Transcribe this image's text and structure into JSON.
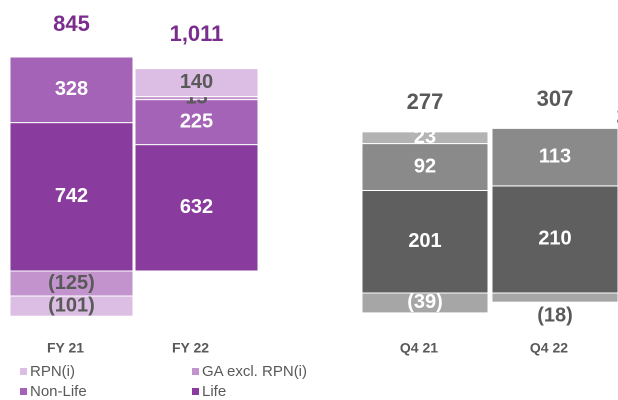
{
  "chart_data": [
    {
      "type": "bar",
      "stacked": true,
      "categories": [
        "FY 21",
        "FY 22"
      ],
      "ylim": [
        -250,
        1100
      ],
      "totals": [
        845,
        1011
      ],
      "total_labels": [
        "845",
        "1,011"
      ],
      "total_color": "#7b2d8e",
      "series": [
        {
          "name": "Life",
          "color": "#8a3b9e",
          "label_color": "#ffffff",
          "values": [
            742,
            632
          ]
        },
        {
          "name": "Non-Life",
          "color": "#a463b6",
          "label_color": "#ffffff",
          "values": [
            328,
            225
          ]
        },
        {
          "name": "GA excl. RPN(i)",
          "color": "#c293cc",
          "label_color": "#595959",
          "values": [
            -125,
            15
          ],
          "value_labels": [
            "(125)",
            "15"
          ]
        },
        {
          "name": "RPN(i)",
          "color": "#dcbde3",
          "label_color": "#595959",
          "values": [
            -101,
            140
          ],
          "value_labels": [
            "(101)",
            "140"
          ]
        }
      ]
    },
    {
      "type": "bar",
      "stacked": true,
      "categories": [
        "Q4 21",
        "Q4 22"
      ],
      "ylim": [
        -60,
        400
      ],
      "totals": [
        277,
        307
      ],
      "total_color": "#595959",
      "series": [
        {
          "color": "#5f5f5f",
          "label_color": "#ffffff",
          "values": [
            201,
            210
          ]
        },
        {
          "color": "#8a8a8a",
          "label_color": "#ffffff",
          "values": [
            92,
            113
          ]
        },
        {
          "color": "#b3b3b3",
          "label_color": "#ffffff",
          "values": [
            23,
            2
          ]
        },
        {
          "color": "#a6a6a6",
          "label_color": "#ffffff",
          "values": [
            -39,
            -18
          ],
          "value_labels": [
            "(39)",
            "(18)"
          ]
        }
      ]
    }
  ]
}
